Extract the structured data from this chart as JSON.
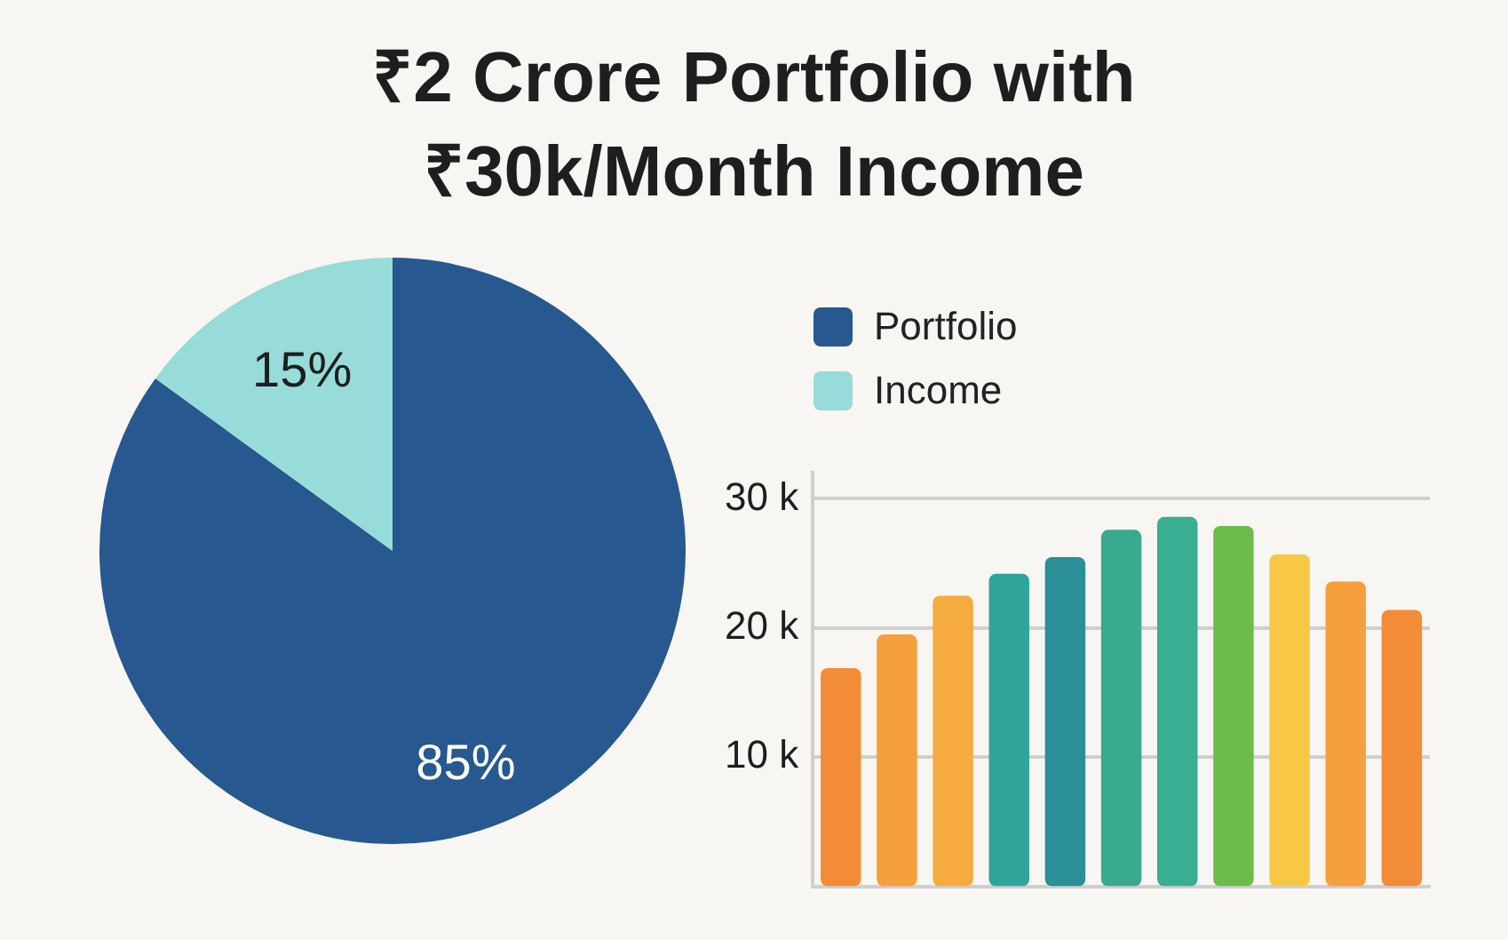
{
  "chart_data": [
    {
      "type": "pie",
      "title": "₹2 Crore Portfolio with ₹30k/Month Income",
      "categories": [
        "Portfolio",
        "Income"
      ],
      "values": [
        85,
        15
      ],
      "colors": [
        "#27588f",
        "#97dcd8"
      ],
      "value_labels": [
        "85%",
        "15%"
      ],
      "legend": "right"
    },
    {
      "type": "bar",
      "categories": [
        null,
        null,
        null,
        null,
        null,
        null,
        null,
        null,
        null,
        null,
        null
      ],
      "values": [
        16900,
        19500,
        22500,
        24200,
        25500,
        27600,
        28600,
        27900,
        25700,
        23600,
        21400
      ],
      "colors": [
        "#f28c38",
        "#f5a03d",
        "#f6ab3f",
        "#2fa59c",
        "#2a8f96",
        "#3aaa8e",
        "#3aae92",
        "#6cbb4c",
        "#f7c844",
        "#f5a03d",
        "#f28c38"
      ],
      "ylim": [
        0,
        32000
      ],
      "yticks": [
        {
          "value": 10000,
          "label": "10 k"
        },
        {
          "value": 20000,
          "label": "20 k"
        },
        {
          "value": 30000,
          "label": "30 k"
        }
      ],
      "grid": "y"
    }
  ]
}
